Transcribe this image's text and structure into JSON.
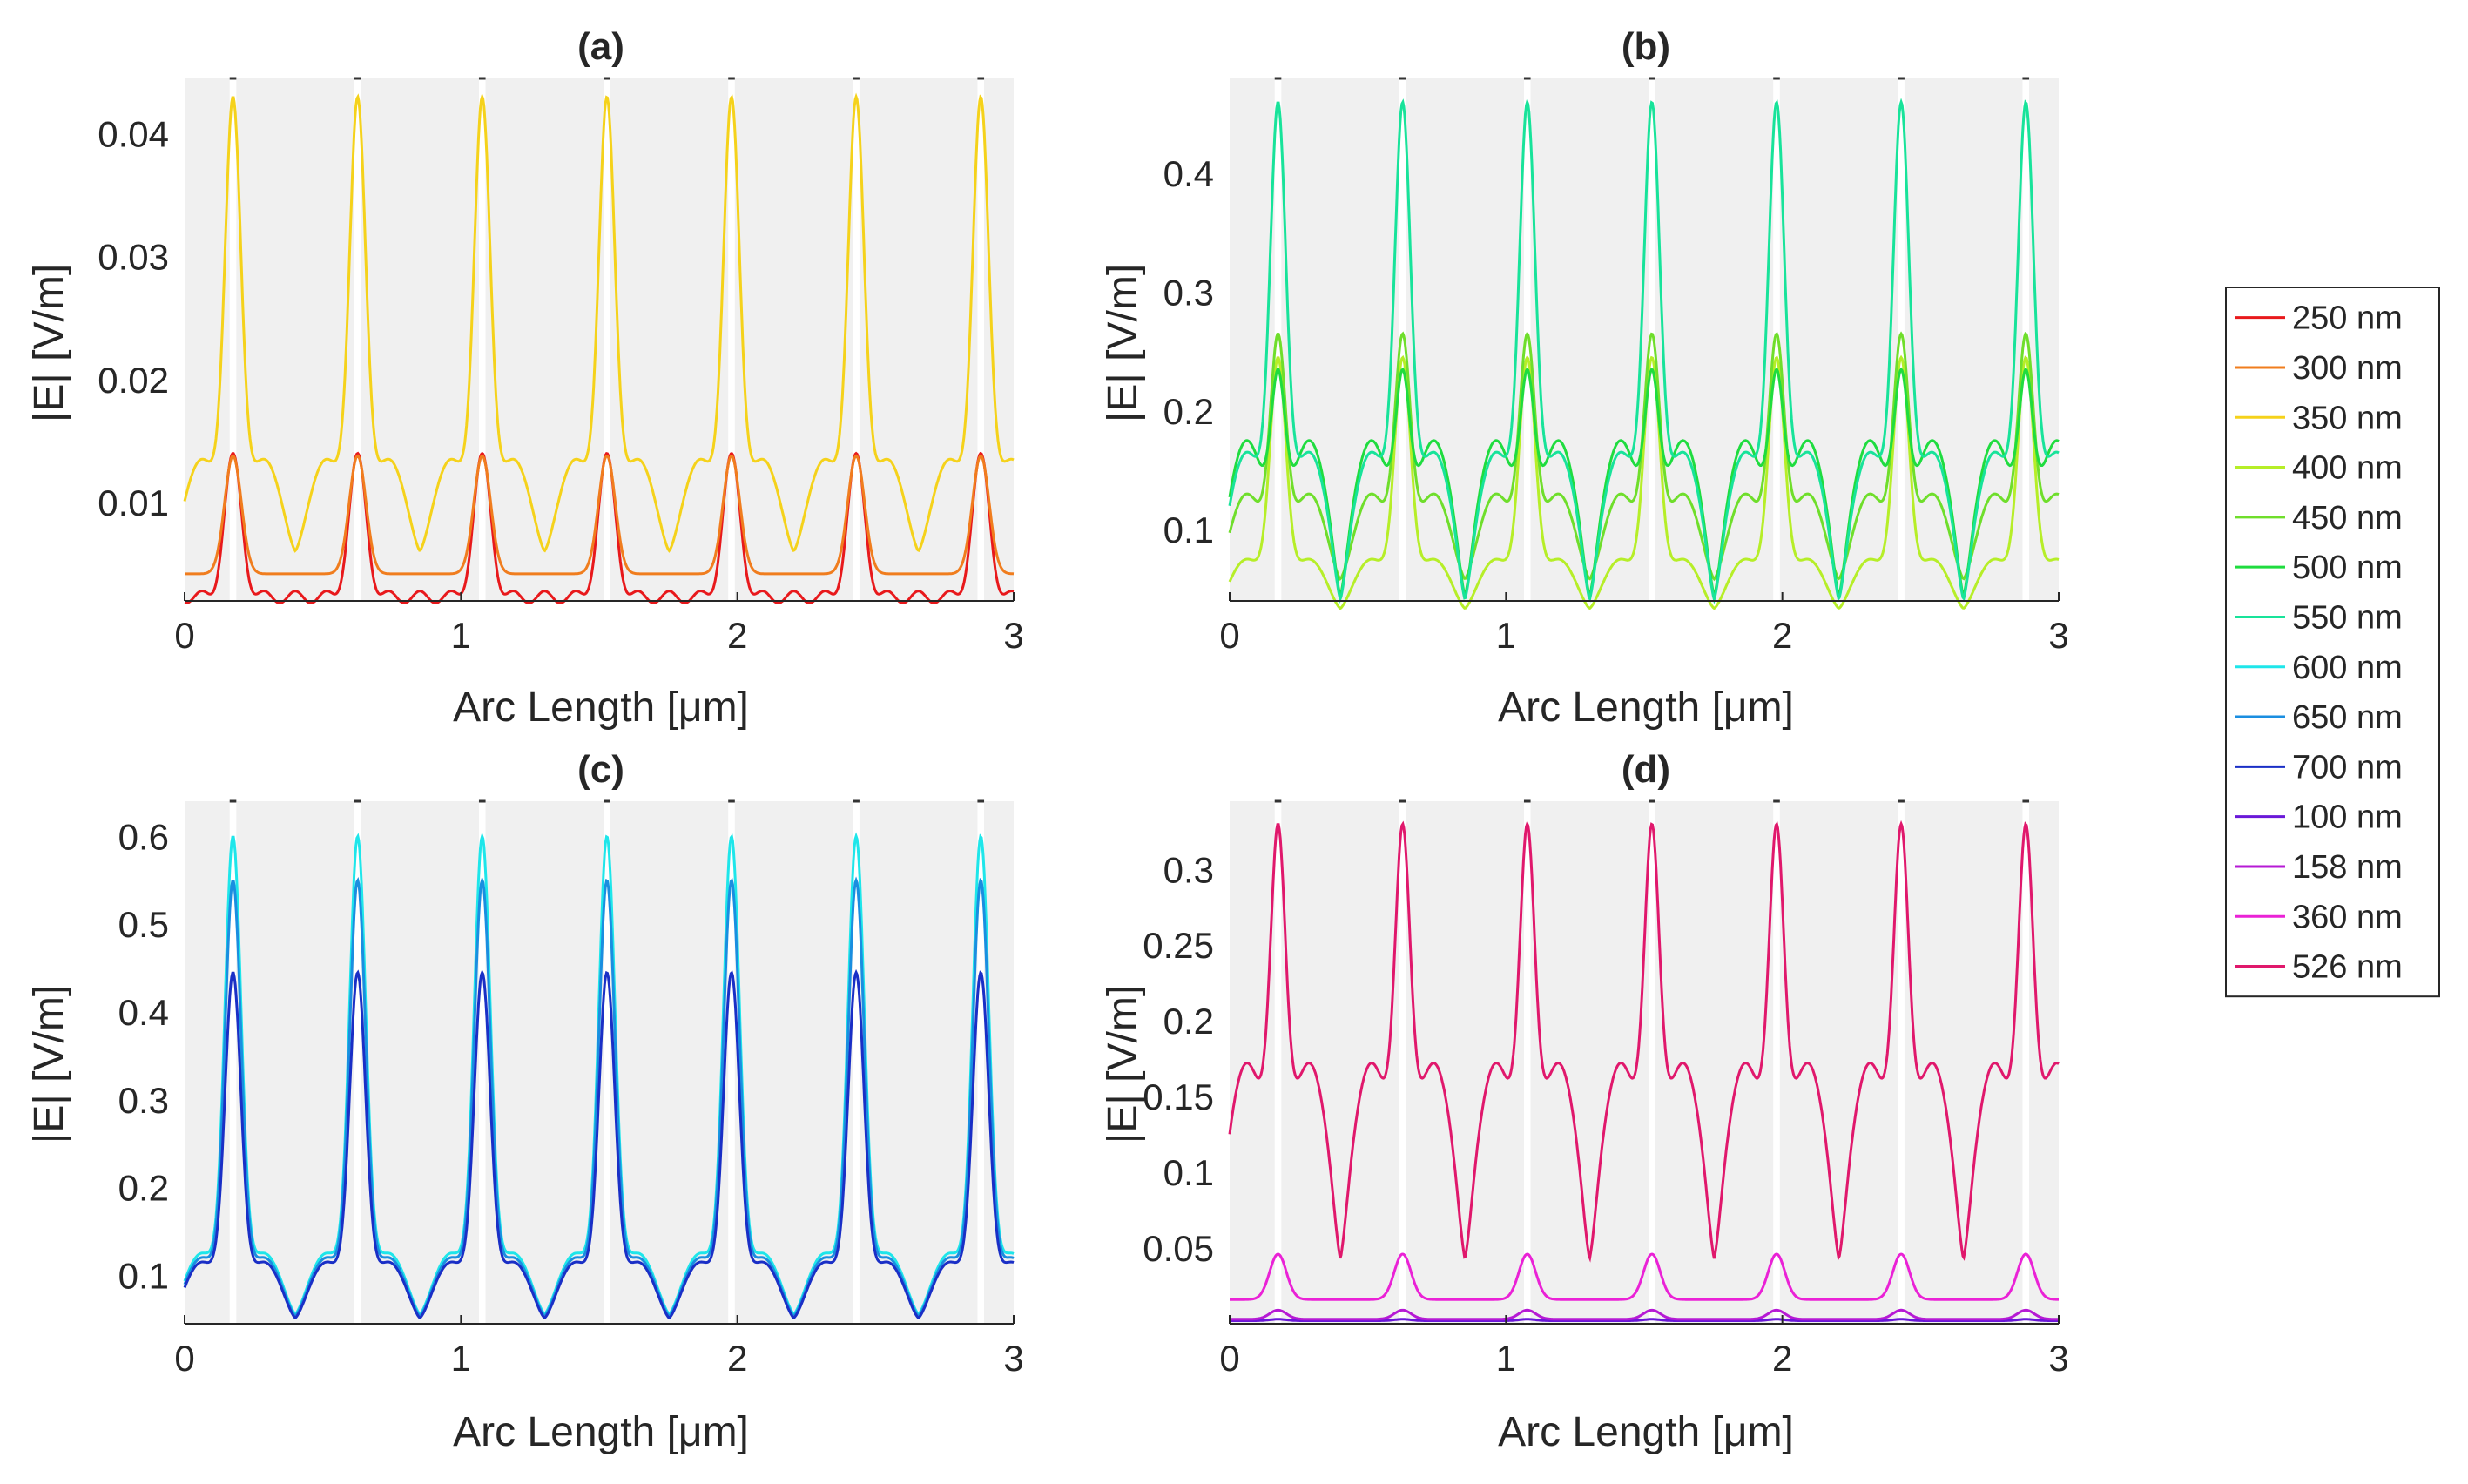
{
  "colors": {
    "250 nm": "#e8191c",
    "300 nm": "#f07d1e",
    "350 nm": "#f5d21b",
    "400 nm": "#b6ee28",
    "450 nm": "#6fde2b",
    "500 nm": "#1fdc3f",
    "550 nm": "#18e39a",
    "600 nm": "#1ee6ea",
    "650 nm": "#1a8ee0",
    "700 nm": "#1a2fc6",
    "100 nm": "#6a18d8",
    "158 nm": "#b61ad4",
    "360 nm": "#ea22d6",
    "526 nm": "#e0186c"
  },
  "legend": {
    "placement": "right",
    "entries": [
      "250 nm",
      "300 nm",
      "350 nm",
      "400 nm",
      "450 nm",
      "500 nm",
      "550 nm",
      "600 nm",
      "650 nm",
      "700 nm",
      "100 nm",
      "158 nm",
      "360 nm",
      "526 nm"
    ]
  },
  "chart_data": [
    {
      "type": "line",
      "title": "(a)",
      "xlabel": "Arc Length [μm]",
      "ylabel": "|E| [V/m]",
      "xlim": [
        0,
        3
      ],
      "ylim": [
        0.002,
        0.0445
      ],
      "xticks": [
        0,
        1,
        2,
        3
      ],
      "xtick_labels": [
        "0",
        "1",
        "2",
        "3"
      ],
      "yticks": [
        0.01,
        0.02,
        0.03,
        0.04
      ],
      "ytick_labels": [
        "0.01",
        "0.02",
        "0.03",
        "0.04"
      ],
      "period": 0.451,
      "peak_positions": [
        0.175,
        0.626,
        1.077,
        1.528,
        1.979,
        2.43,
        2.881
      ],
      "series": [
        {
          "name": "250 nm",
          "peak": 0.014,
          "base": 0.0028,
          "shape": "dip"
        },
        {
          "name": "300 nm",
          "peak": 0.0138,
          "base": 0.0042,
          "shape": "flat"
        },
        {
          "name": "350 nm",
          "peak": 0.043,
          "base": 0.0135,
          "shape": "dome"
        }
      ]
    },
    {
      "type": "line",
      "title": "(b)",
      "xlabel": "Arc Length [μm]",
      "ylabel": "|E| [V/m]",
      "xlim": [
        0,
        3
      ],
      "ylim": [
        0.04,
        0.48
      ],
      "xticks": [
        0,
        1,
        2,
        3
      ],
      "xtick_labels": [
        "0",
        "1",
        "2",
        "3"
      ],
      "yticks": [
        0.1,
        0.2,
        0.3,
        0.4
      ],
      "ytick_labels": [
        "0.1",
        "0.2",
        "0.3",
        "0.4"
      ],
      "period": 0.451,
      "peak_positions": [
        0.175,
        0.626,
        1.077,
        1.528,
        1.979,
        2.43,
        2.881
      ],
      "series": [
        {
          "name": "400 nm",
          "peak": 0.245,
          "base": 0.075,
          "shape": "dome"
        },
        {
          "name": "450 nm",
          "peak": 0.265,
          "base": 0.13,
          "shape": "dome"
        },
        {
          "name": "500 nm",
          "peak": 0.235,
          "base": 0.175,
          "shape": "double"
        },
        {
          "name": "550 nm",
          "peak": 0.46,
          "base": 0.165,
          "shape": "double"
        }
      ]
    },
    {
      "type": "line",
      "title": "(c)",
      "xlabel": "Arc Length [μm]",
      "ylabel": "|E| [V/m]",
      "xlim": [
        0,
        3
      ],
      "ylim": [
        0.045,
        0.64
      ],
      "xticks": [
        0,
        1,
        2,
        3
      ],
      "xtick_labels": [
        "0",
        "1",
        "2",
        "3"
      ],
      "yticks": [
        0.1,
        0.2,
        0.3,
        0.4,
        0.5,
        0.6
      ],
      "ytick_labels": [
        "0.1",
        "0.2",
        "0.3",
        "0.4",
        "0.5",
        "0.6"
      ],
      "period": 0.451,
      "peak_positions": [
        0.175,
        0.626,
        1.077,
        1.528,
        1.979,
        2.43,
        2.881
      ],
      "series": [
        {
          "name": "600 nm",
          "peak": 0.6,
          "base": 0.125,
          "shape": "dome"
        },
        {
          "name": "650 nm",
          "peak": 0.55,
          "base": 0.12,
          "shape": "dome"
        },
        {
          "name": "700 nm",
          "peak": 0.445,
          "base": 0.115,
          "shape": "dome"
        }
      ]
    },
    {
      "type": "line",
      "title": "(d)",
      "xlabel": "Arc Length [μm]",
      "ylabel": "|E| [V/m]",
      "xlim": [
        0,
        3
      ],
      "ylim": [
        0.0,
        0.345
      ],
      "xticks": [
        0,
        1,
        2,
        3
      ],
      "xtick_labels": [
        "0",
        "1",
        "2",
        "3"
      ],
      "yticks": [
        0.05,
        0.1,
        0.15,
        0.2,
        0.25,
        0.3
      ],
      "ytick_labels": [
        "0.05",
        "0.1",
        "0.15",
        "0.2",
        "0.25",
        "0.3"
      ],
      "period": 0.451,
      "peak_positions": [
        0.175,
        0.626,
        1.077,
        1.528,
        1.979,
        2.43,
        2.881
      ],
      "series": [
        {
          "name": "100 nm",
          "peak": 0.003,
          "base": 0.002,
          "shape": "flat"
        },
        {
          "name": "158 nm",
          "peak": 0.009,
          "base": 0.003,
          "shape": "flat"
        },
        {
          "name": "360 nm",
          "peak": 0.046,
          "base": 0.016,
          "shape": "flat"
        },
        {
          "name": "526 nm",
          "peak": 0.33,
          "base": 0.172,
          "shape": "double"
        }
      ]
    }
  ]
}
